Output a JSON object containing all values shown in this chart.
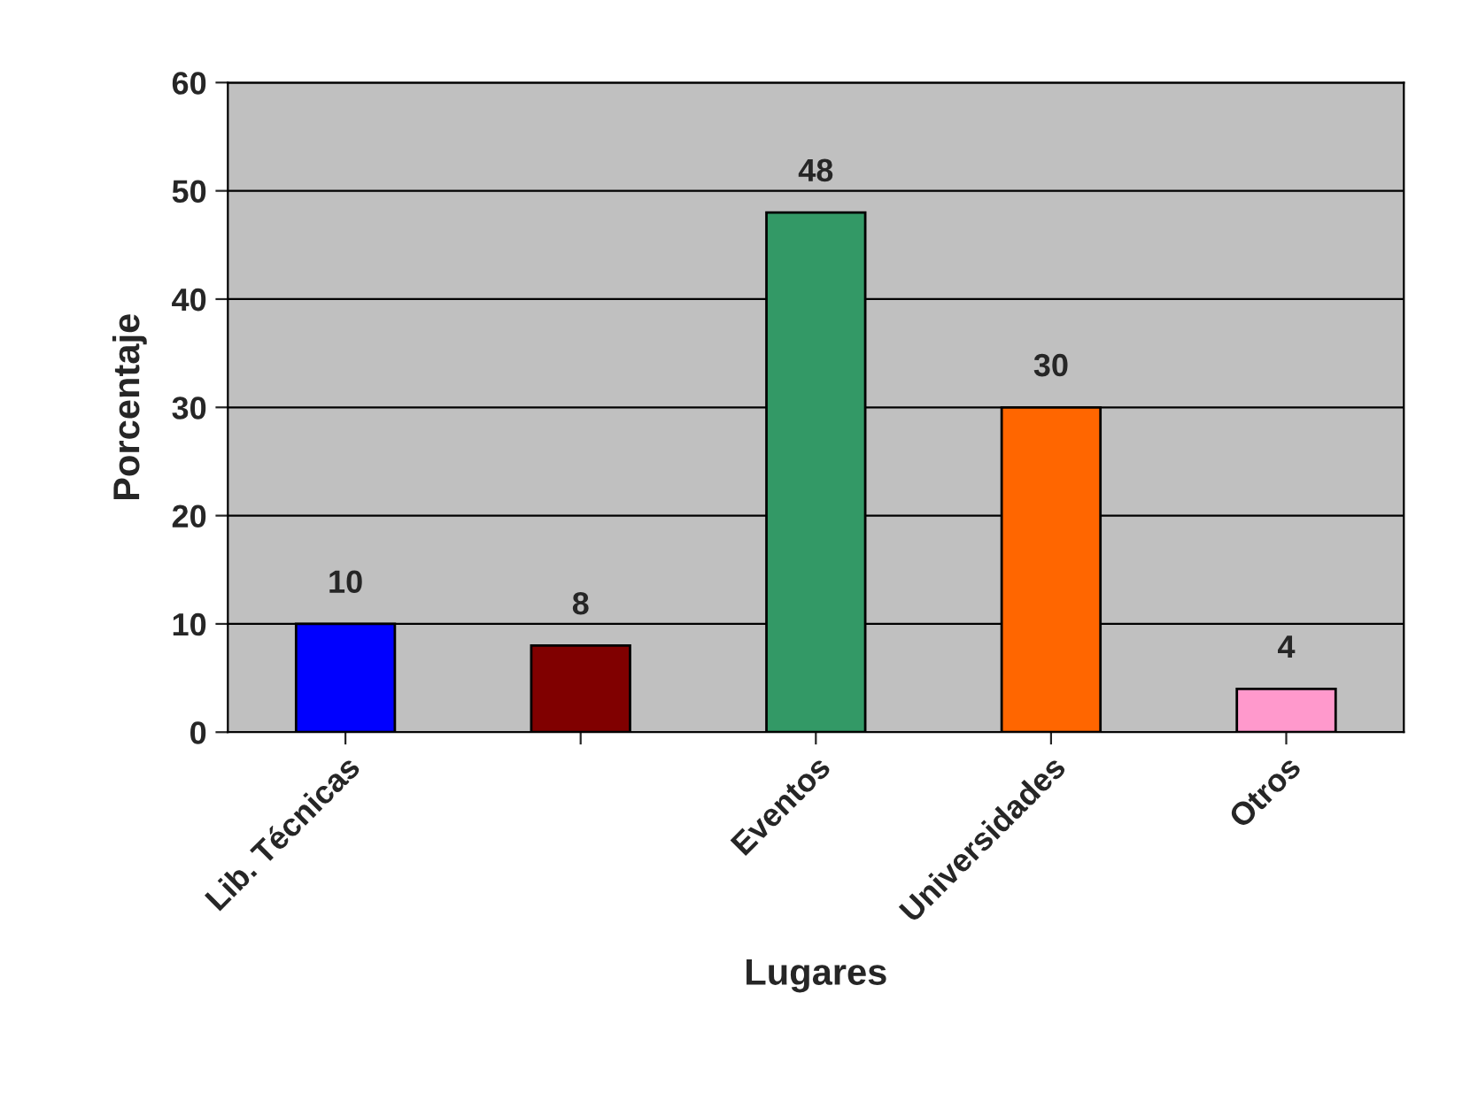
{
  "chart_data": {
    "type": "bar",
    "xlabel": "Lugares",
    "ylabel": "Porcentaje",
    "categories": [
      "Lib. Técnicas",
      null,
      "Eventos",
      "Universidades",
      "Otros"
    ],
    "values": [
      10,
      8,
      48,
      30,
      4
    ],
    "colors": [
      "#0000ff",
      "#800000",
      "#339966",
      "#ff6600",
      "#ff99cc"
    ],
    "ylim": [
      0,
      60
    ],
    "yticks": [
      0,
      10,
      20,
      30,
      40,
      50,
      60
    ],
    "grid": "y",
    "data_labels": true
  }
}
